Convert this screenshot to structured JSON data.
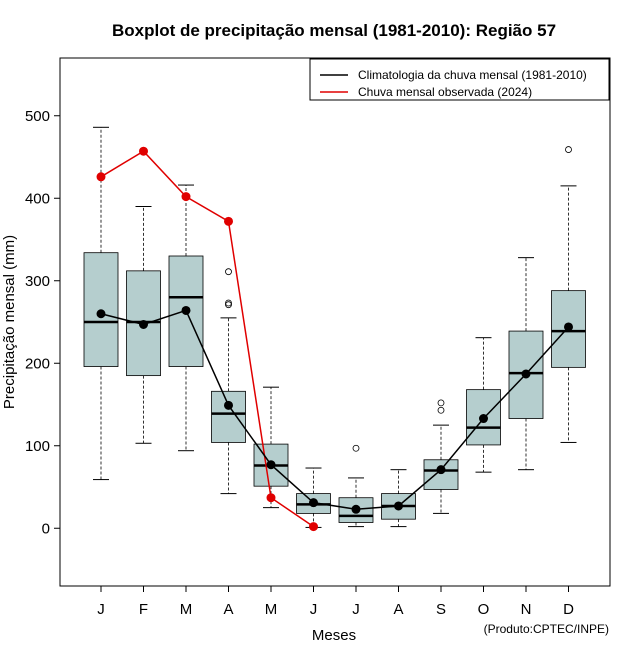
{
  "chart_data": {
    "type": "boxplot",
    "title": "Boxplot de precipitação mensal (1981-2010): Região 57",
    "xlabel": "Meses",
    "ylabel": "Precipitação mensal (mm)",
    "credit": "(Produto:CPTEC/INPE)",
    "ylim": [
      -70,
      570
    ],
    "yticks": [
      0,
      100,
      200,
      300,
      400,
      500
    ],
    "categories": [
      "J",
      "F",
      "M",
      "A",
      "M",
      "J",
      "J",
      "A",
      "S",
      "O",
      "N",
      "D"
    ],
    "boxes": [
      {
        "whisker_low": 59,
        "q1": 196,
        "median": 250,
        "q3": 334,
        "whisker_high": 486,
        "outliers": []
      },
      {
        "whisker_low": 103,
        "q1": 185,
        "median": 250,
        "q3": 312,
        "whisker_high": 390,
        "outliers": []
      },
      {
        "whisker_low": 94,
        "q1": 196,
        "median": 280,
        "q3": 330,
        "whisker_high": 416,
        "outliers": []
      },
      {
        "whisker_low": 42,
        "q1": 104,
        "median": 139,
        "q3": 166,
        "whisker_high": 255,
        "outliers": [
          271,
          273,
          311
        ]
      },
      {
        "whisker_low": 25,
        "q1": 51,
        "median": 76,
        "q3": 102,
        "whisker_high": 171,
        "outliers": []
      },
      {
        "whisker_low": 1,
        "q1": 18,
        "median": 29,
        "q3": 42,
        "whisker_high": 73,
        "outliers": []
      },
      {
        "whisker_low": 2,
        "q1": 7,
        "median": 15,
        "q3": 37,
        "whisker_high": 61,
        "outliers": [
          97
        ]
      },
      {
        "whisker_low": 2,
        "q1": 11,
        "median": 27,
        "q3": 42,
        "whisker_high": 71,
        "outliers": []
      },
      {
        "whisker_low": 18,
        "q1": 47,
        "median": 70,
        "q3": 83,
        "whisker_high": 125,
        "outliers": [
          143,
          152
        ]
      },
      {
        "whisker_low": 68,
        "q1": 101,
        "median": 122,
        "q3": 168,
        "whisker_high": 231,
        "outliers": []
      },
      {
        "whisker_low": 71,
        "q1": 133,
        "median": 188,
        "q3": 239,
        "whisker_high": 328,
        "outliers": []
      },
      {
        "whisker_low": 104,
        "q1": 195,
        "median": 239,
        "q3": 288,
        "whisker_high": 415,
        "outliers": [
          459
        ]
      }
    ],
    "series": [
      {
        "name": "Climatologia da chuva mensal (1981-2010)",
        "color": "#000000",
        "values": [
          260,
          247,
          264,
          149,
          77,
          31,
          23,
          27,
          71,
          133,
          187,
          244
        ]
      },
      {
        "name": "Chuva mensal observada (2024)",
        "color": "#e00000",
        "values": [
          426,
          457,
          402,
          372,
          37,
          2,
          null,
          null,
          null,
          null,
          null,
          null
        ]
      }
    ],
    "legend_position": "top-right",
    "box_fill": "#b5cece"
  }
}
